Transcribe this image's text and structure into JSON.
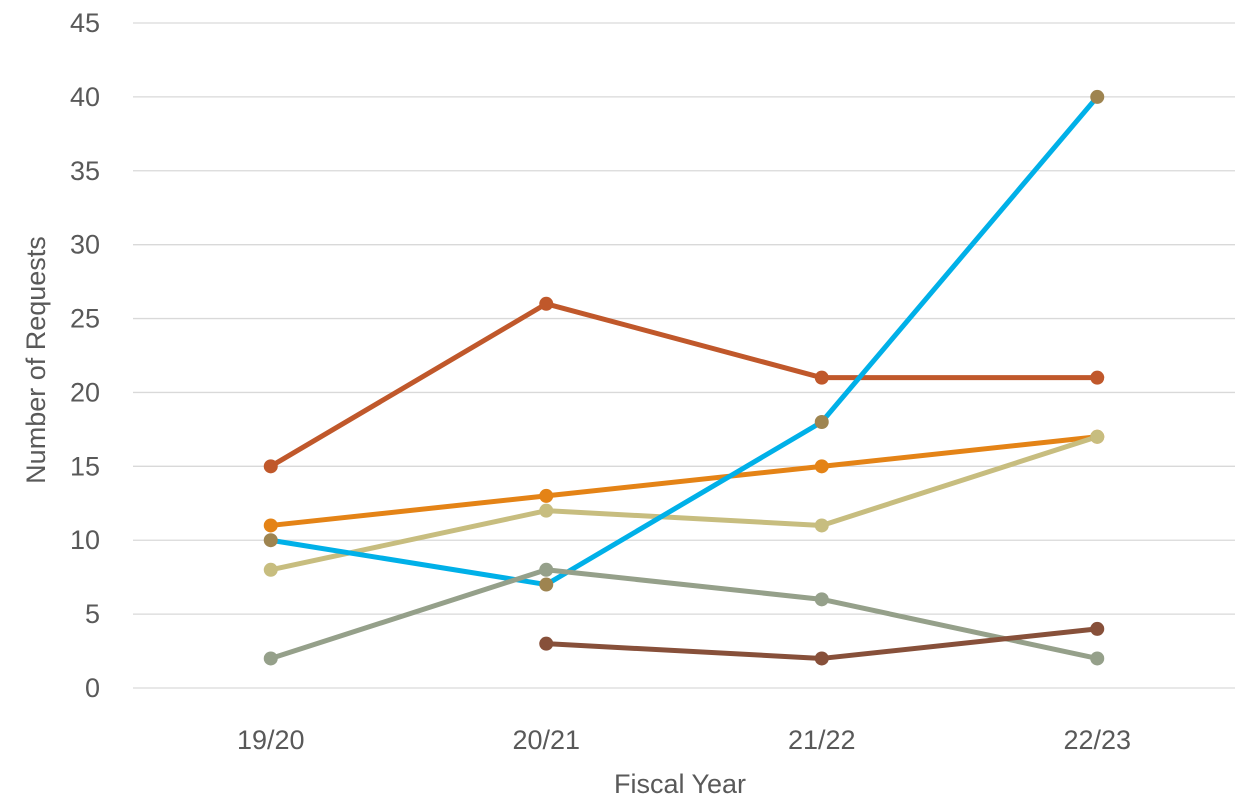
{
  "chart_data": {
    "type": "line",
    "title": "",
    "xlabel": "Fiscal Year",
    "ylabel": "Number of Requests",
    "categories": [
      "19/20",
      "20/21",
      "21/22",
      "22/23"
    ],
    "ylim": [
      0,
      45
    ],
    "yticks": [
      0,
      5,
      10,
      15,
      20,
      25,
      30,
      35,
      40,
      45
    ],
    "grid": true,
    "legend": "none",
    "series": [
      {
        "values": [
          15,
          26,
          21,
          21
        ],
        "color": "#c0582b",
        "marker_color": "#c0582b"
      },
      {
        "values": [
          11,
          13,
          15,
          17
        ],
        "color": "#e48316",
        "marker_color": "#e48316"
      },
      {
        "values": [
          8,
          12,
          11,
          17
        ],
        "color": "#c7bd7f",
        "marker_color": "#c7bd7f"
      },
      {
        "values": [
          10,
          7,
          18,
          40
        ],
        "color": "#00b0e8",
        "marker_color": "#9e8450"
      },
      {
        "values": [
          2,
          8,
          6,
          2
        ],
        "color": "#95a08a",
        "marker_color": "#95a08a"
      },
      {
        "values": [
          null,
          3,
          2,
          4
        ],
        "color": "#87503a",
        "marker_color": "#87503a"
      }
    ]
  }
}
